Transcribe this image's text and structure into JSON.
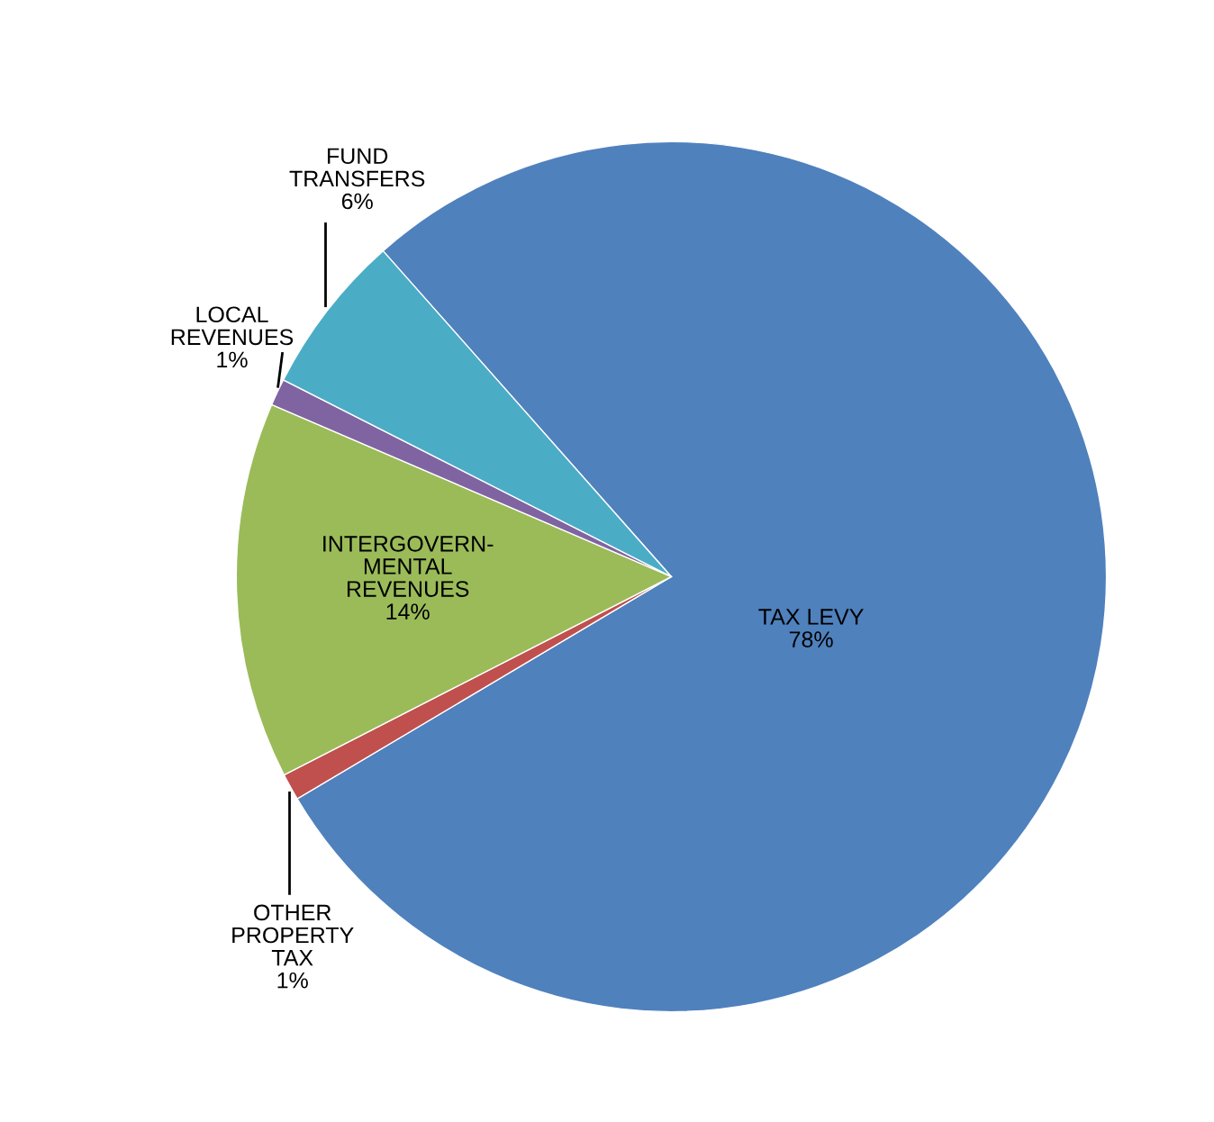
{
  "chart_data": {
    "type": "pie",
    "categories": [
      "TAX LEVY",
      "OTHER\nPROPERTY\nTAX",
      "INTERGOVERN-\nMENTAL\nREVENUES",
      "LOCAL\nREVENUES",
      "FUND\nTRANSFERS"
    ],
    "values": [
      78,
      1,
      14,
      1,
      6
    ],
    "value_labels": [
      "78%",
      "1%",
      "14%",
      "1%",
      "6%"
    ],
    "colors": [
      "#4f81bd",
      "#c0504d",
      "#9bbb59",
      "#8064a2",
      "#4bacc6"
    ]
  }
}
